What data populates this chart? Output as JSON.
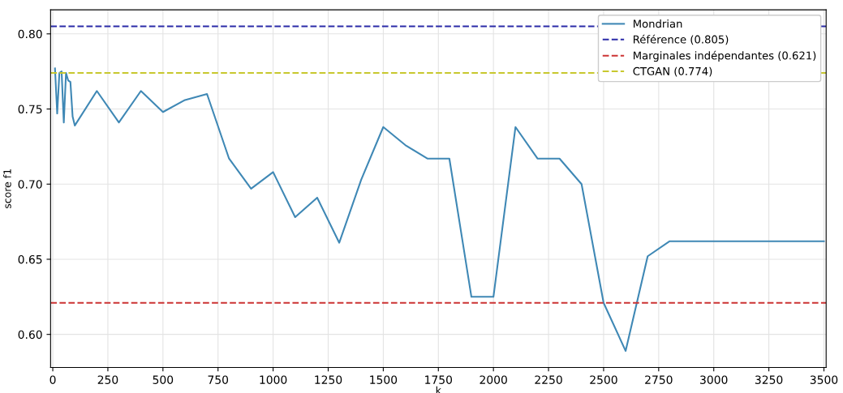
{
  "chart_data": {
    "type": "line",
    "xlabel": "k",
    "ylabel": "score f1",
    "x": [
      10,
      20,
      30,
      40,
      50,
      60,
      70,
      80,
      90,
      100,
      200,
      300,
      400,
      500,
      600,
      700,
      800,
      900,
      1000,
      1100,
      1200,
      1300,
      1400,
      1500,
      1600,
      1700,
      1800,
      1900,
      2000,
      2100,
      2200,
      2300,
      2400,
      2500,
      2600,
      2700,
      2800,
      2900,
      3000,
      3100,
      3200,
      3300,
      3400,
      3500
    ],
    "series": [
      {
        "name": "Mondrian",
        "color": "#3f88b5",
        "values": [
          0.777,
          0.747,
          0.774,
          0.775,
          0.741,
          0.774,
          0.769,
          0.768,
          0.745,
          0.739,
          0.762,
          0.741,
          0.762,
          0.748,
          0.756,
          0.76,
          0.717,
          0.697,
          0.708,
          0.678,
          0.691,
          0.661,
          0.703,
          0.738,
          0.726,
          0.717,
          0.717,
          0.625,
          0.625,
          0.738,
          0.717,
          0.717,
          0.7,
          0.621,
          0.589,
          0.652,
          0.662,
          0.662,
          0.662,
          0.662,
          0.662,
          0.662,
          0.662,
          0.662
        ]
      }
    ],
    "ref_lines": [
      {
        "axis": "y",
        "value": 0.805,
        "label": "Référence (0.805)",
        "color": "#2b2ba8",
        "line_style": "dashed"
      },
      {
        "axis": "y",
        "value": 0.621,
        "label": "Marginales indépendantes (0.621)",
        "color": "#cc3333",
        "line_style": "dashed"
      },
      {
        "axis": "y",
        "value": 0.774,
        "label": "CTGAN (0.774)",
        "color": "#c8c82e",
        "line_style": "dashed"
      }
    ],
    "xlim": [
      -10,
      3510
    ],
    "ylim": [
      0.578,
      0.816
    ],
    "xticks": [
      0,
      250,
      500,
      750,
      1000,
      1250,
      1500,
      1750,
      2000,
      2250,
      2500,
      2750,
      3000,
      3250,
      3500
    ],
    "yticks": [
      {
        "value": 0.6,
        "label": "0.60"
      },
      {
        "value": 0.65,
        "label": "0.65"
      },
      {
        "value": 0.7,
        "label": "0.70"
      },
      {
        "value": 0.75,
        "label": "0.75"
      },
      {
        "value": 0.8,
        "label": "0.80"
      }
    ],
    "grid": true,
    "legend": "top right",
    "line_style": "solid"
  }
}
